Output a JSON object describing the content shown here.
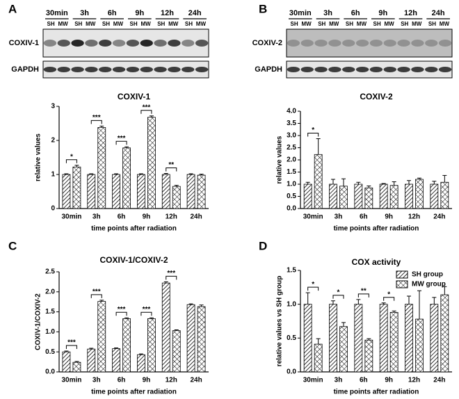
{
  "chart_data": [
    {
      "type": "bar",
      "panel": "A",
      "title": "COXIV-1",
      "xlabel": "time points after radiation",
      "ylabel": "relative values",
      "categories": [
        "30min",
        "3h",
        "6h",
        "9h",
        "12h",
        "24h"
      ],
      "blot": {
        "lanes": [
          "SH",
          "MW"
        ],
        "rows": [
          "COXIV-1",
          "GAPDH"
        ]
      },
      "series": [
        {
          "name": "SH group",
          "color": "#000000",
          "pattern": "diagonal",
          "values": [
            1,
            1,
            1,
            1,
            1,
            1
          ],
          "errors": [
            0.02,
            0.02,
            0.02,
            0.02,
            0.03,
            0.02
          ]
        },
        {
          "name": "MW group",
          "color": "#000000",
          "pattern": "crosshatch",
          "values": [
            1.22,
            2.38,
            1.78,
            2.68,
            0.65,
            0.98
          ],
          "errors": [
            0.05,
            0.04,
            0.03,
            0.04,
            0.03,
            0.03
          ]
        }
      ],
      "annotations": [
        "*",
        "***",
        "***",
        "***",
        "**",
        null
      ],
      "ylim": [
        0,
        3
      ],
      "yticks": [
        0,
        1,
        2,
        3
      ]
    },
    {
      "type": "bar",
      "panel": "B",
      "title": "COXIV-2",
      "xlabel": "time points after radiation",
      "ylabel": "relative values",
      "categories": [
        "30min",
        "3h",
        "6h",
        "9h",
        "12h",
        "24h"
      ],
      "blot": {
        "lanes": [
          "SH",
          "MW"
        ],
        "rows": [
          "COXIV-2",
          "GAPDH"
        ]
      },
      "series": [
        {
          "name": "SH group",
          "color": "#000000",
          "pattern": "diagonal",
          "values": [
            1,
            1,
            1,
            1,
            1,
            1
          ],
          "errors": [
            0.08,
            0.2,
            0.08,
            0.03,
            0.15,
            0.12
          ]
        },
        {
          "name": "MW group",
          "color": "#000000",
          "pattern": "crosshatch",
          "values": [
            2.22,
            0.92,
            0.85,
            0.95,
            1.2,
            1.08
          ],
          "errors": [
            0.65,
            0.3,
            0.08,
            0.15,
            0.05,
            0.28
          ]
        }
      ],
      "annotations": [
        "*",
        null,
        null,
        null,
        null,
        null
      ],
      "ylim": [
        0,
        4
      ],
      "yticks": [
        {
          "value": 0,
          "label": "0.0"
        },
        0.5,
        {
          "value": 1,
          "label": "1.0"
        },
        1.5,
        {
          "value": 2,
          "label": "2.0"
        },
        2.5,
        {
          "value": 3,
          "label": "3.0"
        },
        3.5,
        {
          "value": 4,
          "label": "4.0"
        }
      ]
    },
    {
      "type": "bar",
      "panel": "C",
      "title": "COXIV-1/COXIV-2",
      "xlabel": "time points after radiation",
      "ylabel": "COXIV-1/COXIV-2",
      "categories": [
        "30min",
        "3h",
        "6h",
        "9h",
        "12h",
        "24h"
      ],
      "series": [
        {
          "name": "SH group",
          "color": "#000000",
          "pattern": "diagonal",
          "values": [
            0.5,
            0.57,
            0.58,
            0.43,
            2.22,
            1.68
          ],
          "errors": [
            0.02,
            0.02,
            0.02,
            0.02,
            0.03,
            0.02
          ]
        },
        {
          "name": "MW group",
          "color": "#000000",
          "pattern": "crosshatch",
          "values": [
            0.24,
            1.76,
            1.33,
            1.33,
            1.03,
            1.63
          ],
          "errors": [
            0.02,
            0.03,
            0.02,
            0.02,
            0.02,
            0.04
          ]
        }
      ],
      "annotations": [
        "***",
        "***",
        "***",
        "***",
        "***",
        null
      ],
      "ylim": [
        0,
        2.5
      ],
      "yticks": [
        {
          "value": 0,
          "label": "0.0"
        },
        0.5,
        {
          "value": 1,
          "label": "1.0"
        },
        1.5,
        {
          "value": 2,
          "label": "2.0"
        },
        2.5
      ]
    },
    {
      "type": "bar",
      "panel": "D",
      "title": "COX activity",
      "xlabel": "time points after radiation",
      "ylabel": "relative values vs SH group",
      "categories": [
        "30min",
        "3h",
        "6h",
        "9h",
        "12h",
        "24h"
      ],
      "series": [
        {
          "name": "SH group",
          "color": "#000000",
          "pattern": "diagonal",
          "values": [
            1,
            1,
            1,
            1,
            1,
            1
          ],
          "errors": [
            0.17,
            0.05,
            0.07,
            0.02,
            0.12,
            0.1
          ]
        },
        {
          "name": "MW group",
          "color": "#000000",
          "pattern": "crosshatch",
          "values": [
            0.41,
            0.67,
            0.47,
            0.88,
            0.78,
            1.14
          ],
          "errors": [
            0.08,
            0.06,
            0.02,
            0.02,
            0.42,
            0.12
          ]
        }
      ],
      "annotations": [
        "*",
        "*",
        "**",
        "*",
        null,
        null
      ],
      "legend": "top-right",
      "ylim": [
        0,
        1.5
      ],
      "yticks": [
        {
          "value": 0,
          "label": "0.0"
        },
        0.5,
        {
          "value": 1,
          "label": "1.0"
        },
        1.5
      ]
    }
  ]
}
